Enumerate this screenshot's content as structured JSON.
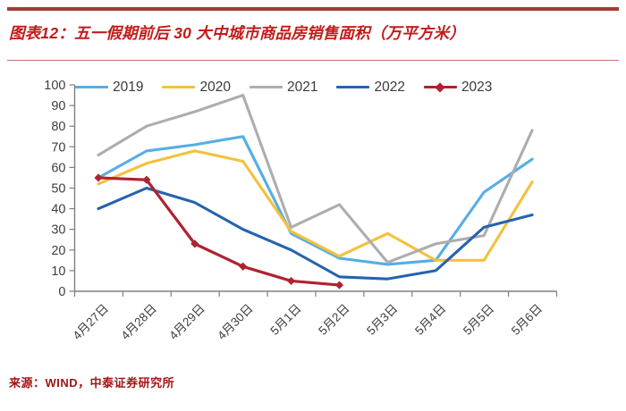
{
  "header": {
    "title": "图表12：五一假期前后 30 大中城市商品房销售面积（万平方米）"
  },
  "source": {
    "label": "来源：WIND，中泰证券研究所"
  },
  "colors": {
    "accent_rule": "#A33B32",
    "title_red": "#C21B1B",
    "axis_gray": "#7F7F7F",
    "tick_label": "#3F3F3F"
  },
  "chart_data": {
    "type": "line",
    "title": "五一假期前后 30 大中城市商品房销售面积（万平方米）",
    "xlabel": "",
    "ylabel": "",
    "ylim": [
      0,
      100
    ],
    "ytick_step": 10,
    "grid": false,
    "legend_position": "top",
    "categories": [
      "4月27日",
      "4月28日",
      "4月29日",
      "4月30日",
      "5月1日",
      "5月2日",
      "5月3日",
      "5月4日",
      "5月5日",
      "5月6日"
    ],
    "series": [
      {
        "name": "2019",
        "color": "#55AEE4",
        "marker": "none",
        "values": [
          55,
          68,
          71,
          75,
          28,
          16,
          13,
          15,
          48,
          64
        ]
      },
      {
        "name": "2020",
        "color": "#F3C13D",
        "marker": "none",
        "values": [
          52,
          62,
          68,
          63,
          29,
          17,
          28,
          15,
          15,
          53
        ]
      },
      {
        "name": "2021",
        "color": "#AEADAD",
        "marker": "none",
        "values": [
          66,
          80,
          87,
          95,
          31,
          42,
          14,
          23,
          27,
          78
        ]
      },
      {
        "name": "2022",
        "color": "#2663AC",
        "marker": "none",
        "values": [
          40,
          50,
          43,
          30,
          20,
          7,
          6,
          10,
          31,
          37
        ]
      },
      {
        "name": "2023",
        "color": "#AF2331",
        "marker": "diamond",
        "values": [
          55,
          54,
          23,
          12,
          5,
          3
        ]
      }
    ]
  }
}
